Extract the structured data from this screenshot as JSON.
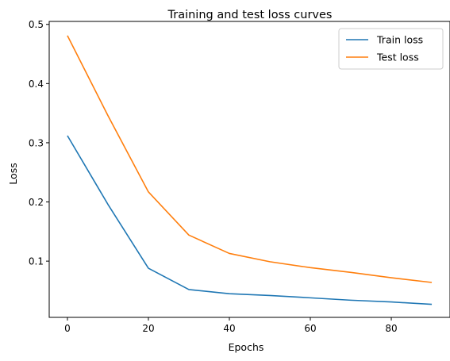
{
  "chart_data": {
    "type": "line",
    "title": "Training and test loss curves",
    "xlabel": "Epochs",
    "ylabel": "Loss",
    "xlim": [
      -4.5,
      94.5
    ],
    "ylim": [
      0.005,
      0.505
    ],
    "xticks": [
      0,
      20,
      40,
      60,
      80
    ],
    "yticks": [
      0.1,
      0.2,
      0.3,
      0.4,
      0.5
    ],
    "grid": false,
    "legend_position": "top-right",
    "series": [
      {
        "name": "Train loss",
        "color": "#1f77b4",
        "x": [
          0,
          10,
          20,
          30,
          40,
          50,
          60,
          70,
          80,
          90
        ],
        "values": [
          0.312,
          0.196,
          0.088,
          0.052,
          0.045,
          0.042,
          0.038,
          0.034,
          0.031,
          0.027
        ]
      },
      {
        "name": "Test loss",
        "color": "#ff7f0e",
        "x": [
          0,
          10,
          20,
          30,
          40,
          50,
          60,
          70,
          80,
          90
        ],
        "values": [
          0.481,
          0.346,
          0.217,
          0.144,
          0.113,
          0.099,
          0.089,
          0.081,
          0.072,
          0.064
        ]
      }
    ]
  }
}
